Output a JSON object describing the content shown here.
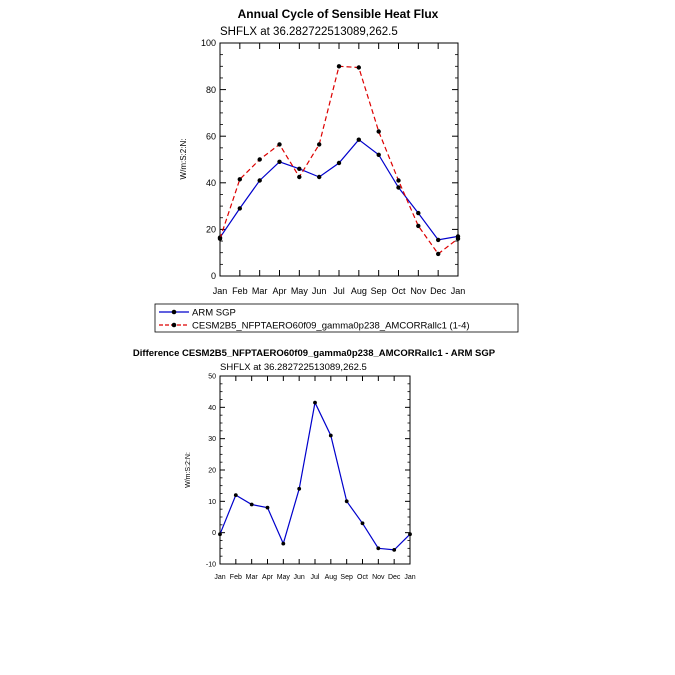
{
  "chart_data": [
    {
      "type": "line",
      "title": "Annual Cycle of Sensible Heat Flux",
      "subtitle": "SHFLX at 36.282722513089,262.5",
      "xlabel": "",
      "ylabel": "W/m:S:2:N:",
      "categories": [
        "Jan",
        "Feb",
        "Mar",
        "Apr",
        "May",
        "Jun",
        "Jul",
        "Aug",
        "Sep",
        "Oct",
        "Nov",
        "Dec",
        "Jan"
      ],
      "ylim": [
        0,
        100
      ],
      "yticks": [
        0,
        20,
        40,
        60,
        80,
        100
      ],
      "grid": false,
      "series": [
        {
          "name": "ARM SGP",
          "color": "#0000cc",
          "style": "solid",
          "values": [
            16.5,
            29,
            41,
            49,
            46,
            42.5,
            48.5,
            58.5,
            52,
            38,
            27,
            15.5,
            17
          ]
        },
        {
          "name": "CESM2B5_NFPTAERO60f09_gamma0p238_AMCORRallc1 (1-4)",
          "color": "#dd0000",
          "style": "dashed",
          "values": [
            16,
            41.5,
            50,
            56.5,
            42.5,
            56.5,
            90,
            89.5,
            62,
            41,
            21.5,
            9.5,
            16
          ]
        }
      ],
      "legend": {
        "position": "bottom",
        "entries": [
          "ARM SGP",
          "CESM2B5_NFPTAERO60f09_gamma0p238_AMCORRallc1 (1-4)"
        ]
      }
    },
    {
      "type": "line",
      "title": "Difference CESM2B5_NFPTAERO60f09_gamma0p238_AMCORRallc1 - ARM SGP",
      "subtitle": "SHFLX at 36.282722513089,262.5",
      "xlabel": "",
      "ylabel": "W/m:S:2:N:",
      "categories": [
        "Jan",
        "Feb",
        "Mar",
        "Apr",
        "May",
        "Jun",
        "Jul",
        "Aug",
        "Sep",
        "Oct",
        "Nov",
        "Dec",
        "Jan"
      ],
      "ylim": [
        -10,
        50
      ],
      "yticks": [
        -10,
        0,
        10,
        20,
        30,
        40,
        50
      ],
      "grid": false,
      "series": [
        {
          "name": "Difference",
          "color": "#0000cc",
          "style": "solid",
          "values": [
            -0.5,
            12,
            9,
            8,
            -3.5,
            14,
            41.5,
            31,
            10,
            3,
            -5,
            -5.5,
            -0.5
          ]
        }
      ]
    }
  ]
}
